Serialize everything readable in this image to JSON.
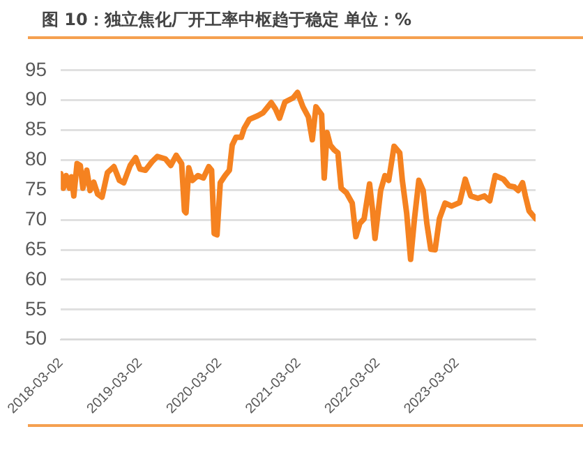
{
  "chart_data": {
    "type": "line",
    "title": "图 10：独立焦化厂开工率中枢趋于稳定 单位：%",
    "x": [
      "2018-03-02",
      "2018-03-14",
      "2018-03-27",
      "2018-04-11",
      "2018-04-21",
      "2018-05-01",
      "2018-05-16",
      "2018-05-31",
      "2018-06-12",
      "2018-06-30",
      "2018-07-15",
      "2018-08-01",
      "2018-08-19",
      "2018-09-08",
      "2018-10-03",
      "2018-11-02",
      "2018-11-27",
      "2018-12-17",
      "2019-01-16",
      "2019-02-10",
      "2019-03-02",
      "2019-03-27",
      "2019-04-26",
      "2019-05-21",
      "2019-06-27",
      "2019-07-22",
      "2019-08-16",
      "2019-09-10",
      "2019-09-23",
      "2019-09-30",
      "2019-10-13",
      "2019-10-30",
      "2019-11-24",
      "2019-12-19",
      "2020-01-13",
      "2020-01-26",
      "2020-02-07",
      "2020-02-20",
      "2020-03-06",
      "2020-03-28",
      "2020-04-17",
      "2020-04-30",
      "2020-05-17",
      "2020-06-11",
      "2020-06-24",
      "2020-07-18",
      "2020-08-25",
      "2020-09-19",
      "2020-10-27",
      "2020-11-16",
      "2020-12-04",
      "2020-12-29",
      "2021-02-05",
      "2021-02-25",
      "2021-03-22",
      "2021-04-16",
      "2021-05-04",
      "2021-05-21",
      "2021-06-16",
      "2021-06-28",
      "2021-07-11",
      "2021-07-26",
      "2021-08-13",
      "2021-08-30",
      "2021-09-14",
      "2021-10-09",
      "2021-11-04",
      "2021-11-21",
      "2021-12-09",
      "2021-12-29",
      "2022-01-23",
      "2022-02-05",
      "2022-02-17",
      "2022-03-15",
      "2022-04-04",
      "2022-04-21",
      "2022-05-16",
      "2022-06-11",
      "2022-06-23",
      "2022-07-13",
      "2022-07-31",
      "2022-08-18",
      "2022-09-07",
      "2022-09-27",
      "2022-10-14",
      "2022-11-01",
      "2022-11-21",
      "2022-12-11",
      "2023-01-06",
      "2023-02-05",
      "2023-03-14",
      "2023-04-09",
      "2023-05-04",
      "2023-06-06",
      "2023-07-06",
      "2023-07-31",
      "2023-08-25",
      "2023-10-02",
      "2023-10-27",
      "2023-11-21",
      "2023-12-09",
      "2023-12-29",
      "2024-01-11",
      "2024-01-28",
      "2024-02-27"
    ],
    "series": [
      {
        "color": "#f58220",
        "values": [
          77.7,
          75.3,
          77.4,
          75.3,
          77.2,
          74,
          79.4,
          79.1,
          75.3,
          78.3,
          74.9,
          76.3,
          74.3,
          73.8,
          77.9,
          78.9,
          76.6,
          76.2,
          79.1,
          80.4,
          78.5,
          78.3,
          79.7,
          80.6,
          80.2,
          79.1,
          80.8,
          79.4,
          71.5,
          71.2,
          78.7,
          76.6,
          77.4,
          77,
          78.9,
          78.3,
          67.7,
          67.5,
          76.2,
          77.4,
          78.3,
          82.5,
          83.8,
          83.8,
          85.3,
          86.8,
          87.4,
          87.9,
          89.6,
          88.5,
          87,
          89.7,
          90.4,
          91.3,
          88.9,
          87.2,
          83.4,
          88.9,
          87.6,
          77,
          84.6,
          82.5,
          81.7,
          81.2,
          75.3,
          74.5,
          72.8,
          67.2,
          69.4,
          70.2,
          76,
          71.9,
          66.9,
          74.9,
          77.4,
          76.6,
          82.3,
          81.2,
          76.6,
          71.1,
          63.4,
          70.2,
          76.6,
          74.9,
          69.4,
          65.1,
          65,
          70.2,
          72.8,
          72.3,
          72.9,
          76.8,
          74,
          73.6,
          74,
          73.2,
          77.4,
          76.8,
          75.7,
          75.5,
          74.9,
          76.2,
          74,
          71.5,
          70.2
        ]
      }
    ],
    "xlim": [
      "2018-03-02",
      "2024-02-27"
    ],
    "xticks": [
      "2018-03-02",
      "2019-03-02",
      "2020-03-02",
      "2021-03-02",
      "2022-03-02",
      "2023-03-02"
    ],
    "ylim": [
      50,
      95
    ],
    "yticks": [
      50,
      55,
      60,
      65,
      70,
      75,
      80,
      85,
      90,
      95
    ],
    "grid": "y",
    "legend": false,
    "marker": "none",
    "line_style": "solid"
  }
}
